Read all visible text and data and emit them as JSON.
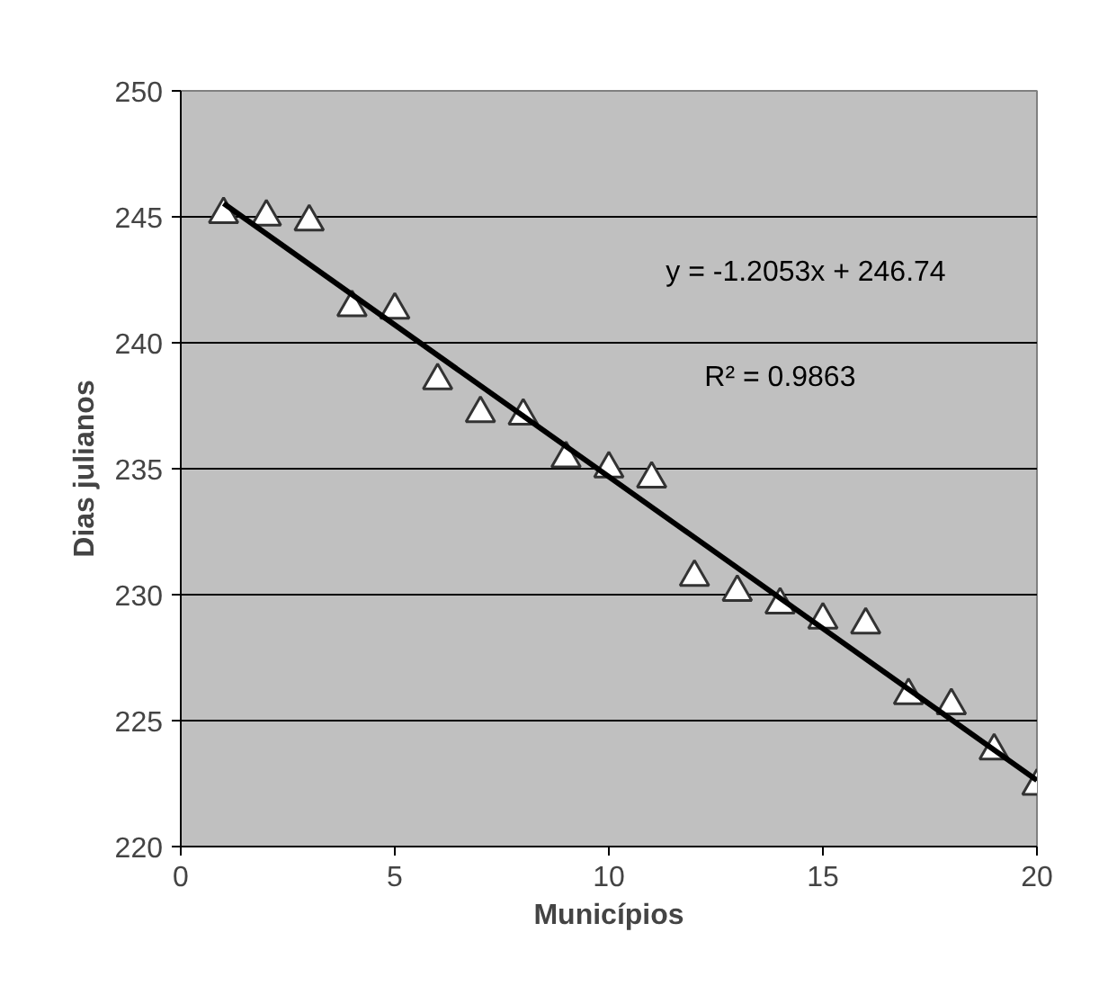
{
  "chart_data": {
    "type": "scatter",
    "xlabel": "Municípios",
    "ylabel": "Dias julianos",
    "x": [
      1,
      2,
      3,
      4,
      5,
      6,
      7,
      8,
      9,
      10,
      11,
      12,
      13,
      14,
      15,
      16,
      17,
      18,
      19,
      20
    ],
    "xlim": [
      0,
      20
    ],
    "xticks": [
      0,
      5,
      10,
      15,
      20
    ],
    "ylim": [
      220,
      250
    ],
    "yticks": [
      220,
      225,
      230,
      235,
      240,
      245,
      250
    ],
    "grid": "y",
    "series": [
      {
        "marker": "triangle",
        "color": "#ffffff",
        "values": [
          245.1,
          245.0,
          244.8,
          241.4,
          241.3,
          238.5,
          237.2,
          237.1,
          235.4,
          235.0,
          234.6,
          230.7,
          230.1,
          229.6,
          229.0,
          228.8,
          226.0,
          225.6,
          223.8,
          222.4
        ]
      },
      {
        "type": "line",
        "color": "#000000",
        "x": [
          1,
          20
        ],
        "values": [
          245.53,
          222.63
        ]
      }
    ],
    "annotations": [
      "y = -1.2053x + 246.74",
      "R² = 0.9863"
    ]
  }
}
